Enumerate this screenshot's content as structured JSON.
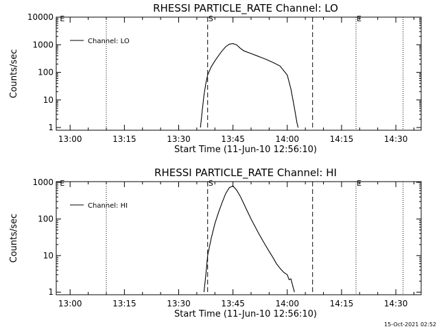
{
  "footer_timestamp": "15-Oct-2021 02:52",
  "chart_data": [
    {
      "type": "line",
      "title": "RHESSI PARTICLE_RATE Channel: LO",
      "xlabel": "Start Time (11-Jun-10 12:56:10)",
      "ylabel": "Counts/sec",
      "y_scale": "log",
      "ylim": [
        0.8,
        10000
      ],
      "y_ticks": [
        {
          "value": 1,
          "label": "1"
        },
        {
          "value": 10,
          "label": "10"
        },
        {
          "value": 100,
          "label": "100"
        },
        {
          "value": 1000,
          "label": "1000"
        },
        {
          "value": 10000,
          "label": "10000"
        }
      ],
      "xlim": [
        "12:56:10",
        "14:37:00"
      ],
      "x_ticks": [
        {
          "value": "13:00",
          "label": "13:00"
        },
        {
          "value": "13:15",
          "label": "13:15"
        },
        {
          "value": "13:30",
          "label": "13:30"
        },
        {
          "value": "13:45",
          "label": "13:45"
        },
        {
          "value": "14:00",
          "label": "14:00"
        },
        {
          "value": "14:15",
          "label": "14:15"
        },
        {
          "value": "14:30",
          "label": "14:30"
        }
      ],
      "grid": false,
      "legend": {
        "position": "top-left",
        "entries": [
          "Channel: LO"
        ]
      },
      "series": [
        {
          "name": "Channel: LO",
          "x": [
            "13:36:00",
            "13:36:30",
            "13:37:00",
            "13:37:30",
            "13:38:00",
            "13:39:00",
            "13:40:00",
            "13:41:00",
            "13:42:00",
            "13:43:00",
            "13:44:00",
            "13:45:00",
            "13:46:00",
            "13:47:00",
            "13:48:00",
            "13:50:00",
            "13:52:00",
            "13:54:00",
            "13:56:00",
            "13:58:00",
            "14:00:00",
            "14:01:00",
            "14:02:00",
            "14:02:40",
            "14:03:00"
          ],
          "y": [
            1,
            4,
            15,
            40,
            80,
            160,
            260,
            400,
            600,
            850,
            1050,
            1100,
            1000,
            750,
            600,
            480,
            380,
            300,
            230,
            170,
            80,
            25,
            5,
            1.5,
            1
          ]
        }
      ],
      "annotations": [
        {
          "kind": "dashed",
          "x": "13:38:00",
          "label": "S"
        },
        {
          "kind": "dashed",
          "x": "14:07:00",
          "label": ""
        },
        {
          "kind": "dotted",
          "x": "13:10:00",
          "label": ""
        },
        {
          "kind": "dotted",
          "x": "14:19:00",
          "label": "E"
        },
        {
          "kind": "dotted",
          "x": "14:32:00",
          "label": ""
        },
        {
          "kind": "marker",
          "x": "12:57:00",
          "label": "E"
        }
      ]
    },
    {
      "type": "line",
      "title": "RHESSI PARTICLE_RATE Channel: HI",
      "xlabel": "Start Time (11-Jun-10 12:56:10)",
      "ylabel": "Counts/sec",
      "y_scale": "log",
      "ylim": [
        0.85,
        1050
      ],
      "y_ticks": [
        {
          "value": 1,
          "label": "1"
        },
        {
          "value": 10,
          "label": "10"
        },
        {
          "value": 100,
          "label": "100"
        },
        {
          "value": 1000,
          "label": "1000"
        }
      ],
      "xlim": [
        "12:56:10",
        "14:37:00"
      ],
      "x_ticks": [
        {
          "value": "13:00",
          "label": "13:00"
        },
        {
          "value": "13:15",
          "label": "13:15"
        },
        {
          "value": "13:30",
          "label": "13:30"
        },
        {
          "value": "13:45",
          "label": "13:45"
        },
        {
          "value": "14:00",
          "label": "14:00"
        },
        {
          "value": "14:15",
          "label": "14:15"
        },
        {
          "value": "14:30",
          "label": "14:30"
        }
      ],
      "grid": false,
      "legend": {
        "position": "top-left",
        "entries": [
          "Channel: HI"
        ]
      },
      "series": [
        {
          "name": "Channel: HI",
          "x": [
            "13:37:00",
            "13:37:30",
            "13:38:00",
            "13:39:00",
            "13:40:00",
            "13:41:00",
            "13:42:00",
            "13:43:00",
            "13:44:00",
            "13:45:00",
            "13:46:00",
            "13:47:00",
            "13:48:00",
            "13:49:00",
            "13:50:00",
            "13:51:00",
            "13:52:00",
            "13:53:00",
            "13:54:00",
            "13:55:00",
            "13:56:00",
            "13:57:00",
            "13:58:00",
            "13:59:00",
            "14:00:00",
            "14:00:30",
            "14:01:00",
            "14:01:30",
            "14:02:00"
          ],
          "y": [
            1,
            3,
            10,
            30,
            75,
            150,
            280,
            500,
            720,
            800,
            620,
            420,
            260,
            160,
            100,
            65,
            42,
            28,
            19,
            13,
            9,
            6,
            4.5,
            3.5,
            3,
            2.2,
            2.3,
            1.5,
            1
          ]
        }
      ],
      "annotations": [
        {
          "kind": "dashed",
          "x": "13:38:00",
          "label": "S"
        },
        {
          "kind": "dashed",
          "x": "14:07:00",
          "label": ""
        },
        {
          "kind": "dotted",
          "x": "13:10:00",
          "label": ""
        },
        {
          "kind": "dotted",
          "x": "14:19:00",
          "label": "E"
        },
        {
          "kind": "dotted",
          "x": "14:32:00",
          "label": ""
        },
        {
          "kind": "marker",
          "x": "12:57:00",
          "label": "E"
        }
      ]
    }
  ]
}
